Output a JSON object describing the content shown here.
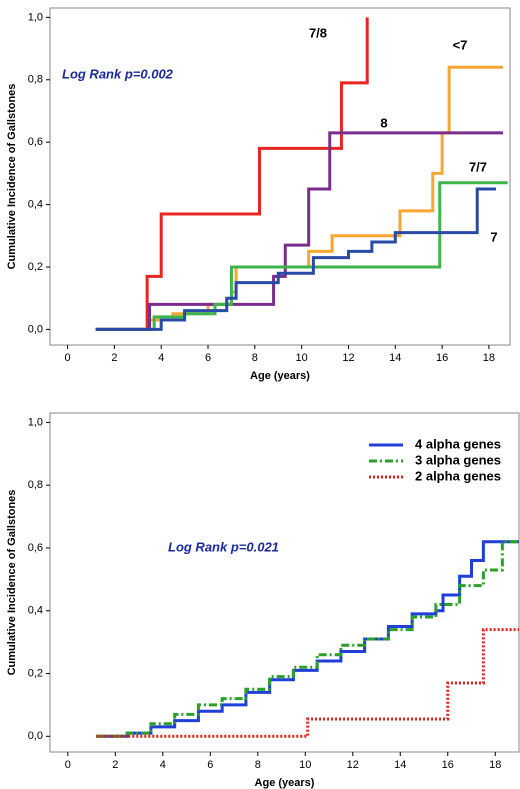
{
  "chart_data": [
    {
      "type": "line",
      "step": true,
      "xlabel": "Age (years)",
      "ylabel": "Cumulative Incidence of Gallstones",
      "annotation": "Log Rank p=0.002",
      "xlim": [
        -0.75,
        18.9
      ],
      "xticks": [
        0,
        2,
        4,
        6,
        8,
        10,
        12,
        14,
        16,
        18
      ],
      "ylim": [
        -0.05,
        1.03
      ],
      "yticks": [
        {
          "value": 0,
          "label": "0,0"
        },
        {
          "value": 0.2,
          "label": "0,2"
        },
        {
          "value": 0.4,
          "label": "0,4"
        },
        {
          "value": 0.6,
          "label": "0,6"
        },
        {
          "value": 0.8,
          "label": "0,8"
        },
        {
          "value": 1,
          "label": "1,0"
        }
      ],
      "series": [
        {
          "name": "7/8",
          "color": "#e8251f",
          "dash": "solid",
          "x": [
            1.2,
            3.4,
            4.0,
            8.2,
            11.7,
            12.8
          ],
          "values": [
            0,
            0.17,
            0.37,
            0.58,
            0.79,
            1.0
          ]
        },
        {
          "name": "<7",
          "color": "#f7a631",
          "dash": "solid",
          "x": [
            1.2,
            3.5,
            4.5,
            6,
            7,
            7.2,
            10.3,
            11.3,
            14.2,
            15.6,
            16,
            16.3,
            18.6
          ],
          "values": [
            0,
            0.03,
            0.05,
            0.08,
            0.12,
            0.2,
            0.25,
            0.3,
            0.38,
            0.5,
            0.63,
            0.84,
            0.84
          ]
        },
        {
          "name": "8",
          "color": "#7b2d8e",
          "dash": "solid",
          "x": [
            1.2,
            3.5,
            8.8,
            9.3,
            10.3,
            11.2,
            18.6
          ],
          "values": [
            0,
            0.08,
            0.17,
            0.27,
            0.45,
            0.63,
            0.63
          ]
        },
        {
          "name": "7/7",
          "color": "#3cb64a",
          "dash": "solid",
          "x": [
            1.2,
            3.7,
            5,
            6.3,
            7,
            15.9,
            18.8
          ],
          "values": [
            0,
            0.04,
            0.05,
            0.08,
            0.2,
            0.47,
            0.47
          ]
        },
        {
          "name": "7",
          "color": "#2a4aa8",
          "dash": "solid",
          "x": [
            1.2,
            4,
            5,
            6.8,
            7.2,
            9,
            10.5,
            12,
            13,
            14,
            17.5,
            18.3
          ],
          "values": [
            0,
            0.03,
            0.06,
            0.1,
            0.15,
            0.18,
            0.23,
            0.25,
            0.28,
            0.31,
            0.45,
            0.45
          ]
        }
      ]
    },
    {
      "type": "line",
      "step": true,
      "xlabel": "Age (years)",
      "ylabel": "Cumulative Incidence of Gallstones",
      "annotation": "Log Rank p=0.021",
      "legend": "upper right",
      "xlim": [
        -0.75,
        19.0
      ],
      "xticks": [
        0,
        2,
        4,
        6,
        8,
        10,
        12,
        14,
        16,
        18
      ],
      "ylim": [
        -0.05,
        1.03
      ],
      "yticks": [
        {
          "value": 0,
          "label": "0,0"
        },
        {
          "value": 0.2,
          "label": "0,2"
        },
        {
          "value": 0.4,
          "label": "0,4"
        },
        {
          "value": 0.6,
          "label": "0,6"
        },
        {
          "value": 0.8,
          "label": "0,8"
        },
        {
          "value": 1,
          "label": "1,0"
        }
      ],
      "series": [
        {
          "name": "4 alpha genes",
          "color": "#1f3fd8",
          "dash": "solid",
          "x": [
            1.2,
            2.5,
            3.5,
            4.5,
            5.5,
            6.5,
            7.5,
            8.5,
            9.5,
            10.5,
            11.5,
            12.5,
            13.5,
            14.5,
            15.5,
            15.8,
            16.5,
            17,
            17.5,
            19
          ],
          "values": [
            0,
            0.01,
            0.03,
            0.05,
            0.08,
            0.1,
            0.14,
            0.18,
            0.21,
            0.24,
            0.27,
            0.31,
            0.35,
            0.39,
            0.4,
            0.45,
            0.51,
            0.56,
            0.62,
            0.62
          ]
        },
        {
          "name": "3 alpha genes",
          "color": "#2aa02a",
          "dash": "dashdot",
          "x": [
            1.2,
            2.5,
            3.5,
            4.5,
            5.5,
            6.5,
            7.5,
            8.5,
            9.5,
            10.5,
            11.5,
            12.5,
            13.5,
            14.5,
            15.5,
            16.5,
            17.5,
            18.3,
            19
          ],
          "values": [
            0,
            0.01,
            0.04,
            0.07,
            0.1,
            0.12,
            0.15,
            0.19,
            0.22,
            0.26,
            0.29,
            0.31,
            0.34,
            0.38,
            0.42,
            0.48,
            0.53,
            0.62,
            0.62
          ]
        },
        {
          "name": "2 alpha genes",
          "color": "#e0201c",
          "dash": "dotted",
          "x": [
            1.2,
            10.1,
            16,
            17.5,
            19
          ],
          "values": [
            0,
            0.055,
            0.17,
            0.34,
            0.34
          ]
        }
      ]
    }
  ]
}
